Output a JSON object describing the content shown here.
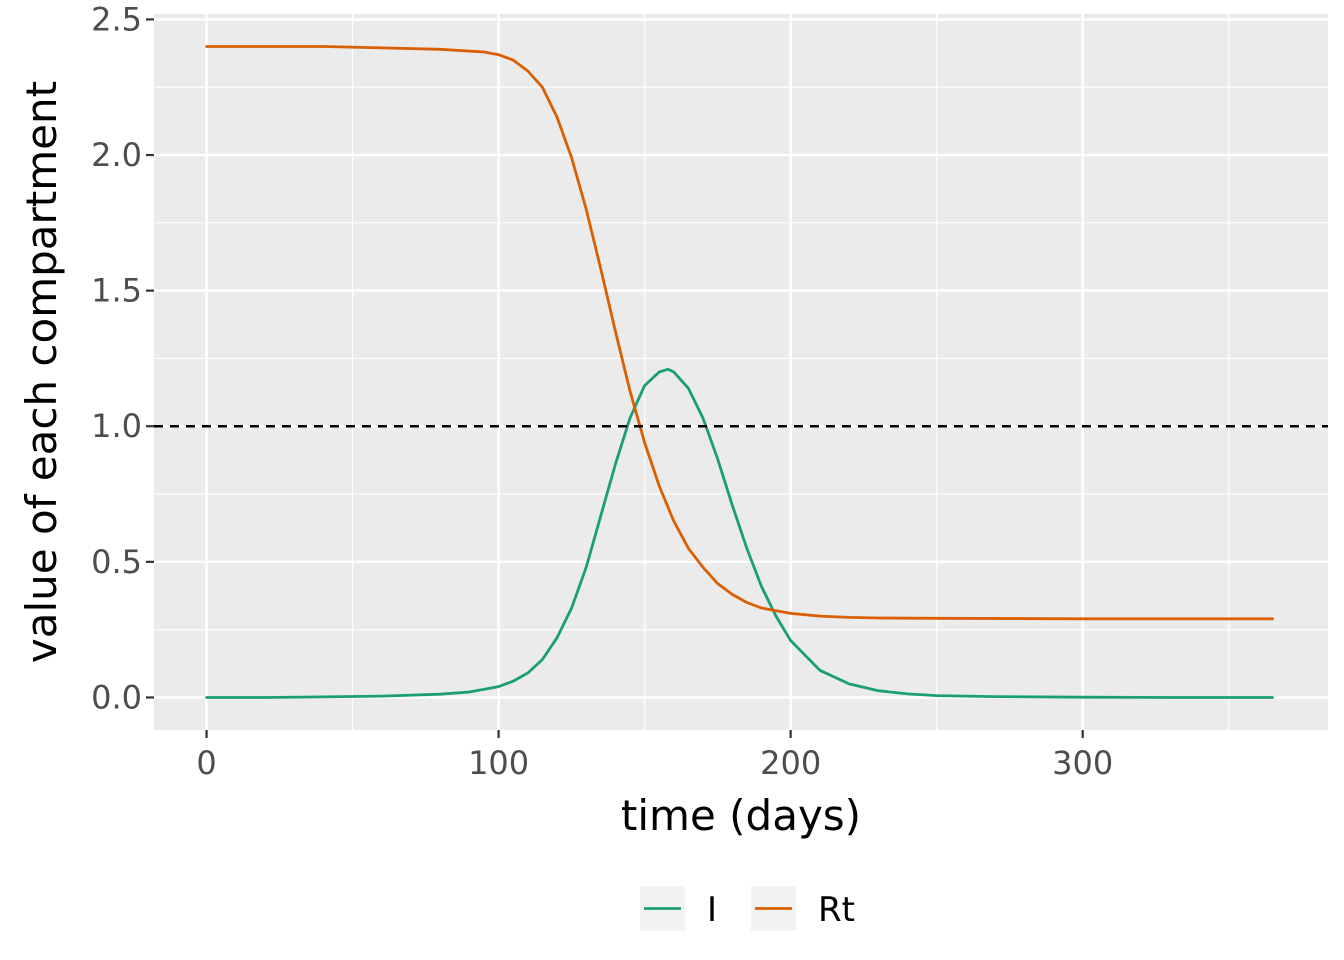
{
  "chart_data": {
    "type": "line",
    "title": "",
    "xlabel": "time (days)",
    "ylabel": "value of each compartment",
    "xlim": [
      -18,
      384
    ],
    "ylim": [
      -0.12,
      2.52
    ],
    "x_ticks": [
      0,
      100,
      200,
      300
    ],
    "y_ticks": [
      0.0,
      0.5,
      1.0,
      1.5,
      2.0,
      2.5
    ],
    "x_tick_labels": [
      "0",
      "100",
      "200",
      "300"
    ],
    "y_tick_labels": [
      "0.0",
      "0.5",
      "1.0",
      "1.5",
      "2.0",
      "2.5"
    ],
    "grid": true,
    "legend_position": "bottom",
    "reference_line": {
      "y": 1.0,
      "style": "dashed",
      "color": "#000000"
    },
    "colors": {
      "panel_bg": "#ebebeb",
      "grid": "#ffffff",
      "I": "#1b9e77",
      "Rt": "#d95f02"
    },
    "series": [
      {
        "name": "I",
        "color": "#1b9e77",
        "x": [
          0,
          20,
          40,
          60,
          80,
          90,
          100,
          105,
          110,
          115,
          120,
          125,
          130,
          135,
          140,
          145,
          150,
          155,
          158,
          160,
          165,
          170,
          175,
          180,
          185,
          190,
          195,
          200,
          210,
          220,
          230,
          240,
          250,
          270,
          300,
          330,
          365
        ],
        "y": [
          0.0,
          0.0,
          0.002,
          0.005,
          0.012,
          0.02,
          0.04,
          0.06,
          0.09,
          0.14,
          0.22,
          0.33,
          0.48,
          0.67,
          0.86,
          1.03,
          1.15,
          1.2,
          1.21,
          1.2,
          1.14,
          1.03,
          0.88,
          0.71,
          0.55,
          0.41,
          0.3,
          0.21,
          0.1,
          0.05,
          0.025,
          0.013,
          0.007,
          0.003,
          0.001,
          0.0,
          0.0
        ]
      },
      {
        "name": "Rt",
        "color": "#d95f02",
        "x": [
          0,
          40,
          80,
          95,
          100,
          105,
          110,
          115,
          120,
          125,
          130,
          135,
          140,
          145,
          150,
          155,
          160,
          165,
          170,
          175,
          180,
          185,
          190,
          195,
          200,
          210,
          220,
          230,
          250,
          300,
          365
        ],
        "y": [
          2.4,
          2.4,
          2.39,
          2.38,
          2.37,
          2.35,
          2.31,
          2.25,
          2.14,
          1.99,
          1.8,
          1.58,
          1.35,
          1.13,
          0.94,
          0.78,
          0.65,
          0.55,
          0.48,
          0.42,
          0.38,
          0.35,
          0.33,
          0.32,
          0.31,
          0.3,
          0.295,
          0.293,
          0.292,
          0.29,
          0.29
        ]
      }
    ]
  }
}
